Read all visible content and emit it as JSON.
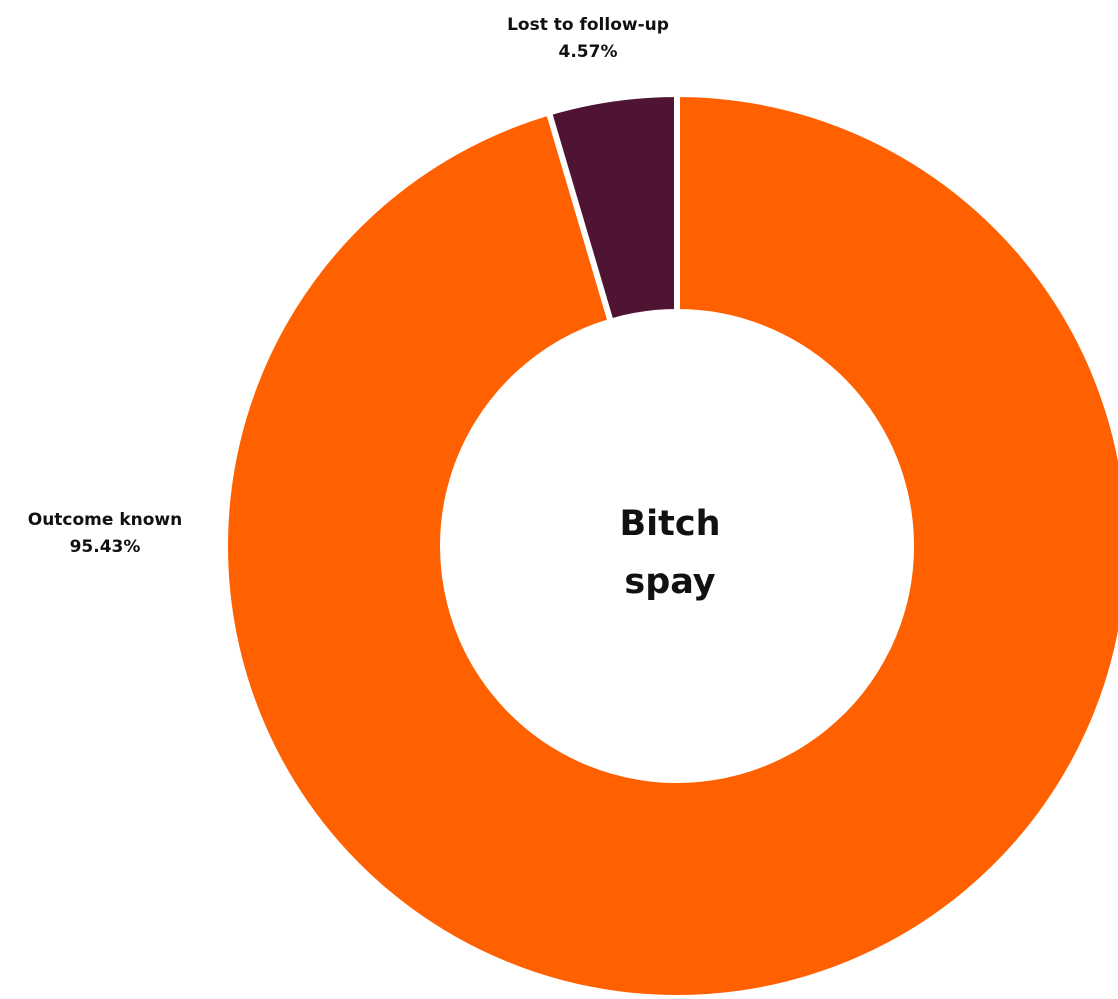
{
  "chart_data": {
    "type": "donut",
    "center_label": [
      "Bitch",
      "spay"
    ],
    "categories": [
      "Outcome known",
      "Lost to follow-up"
    ],
    "values": [
      95.43,
      4.57
    ],
    "value_labels": [
      "95.43%",
      "4.57%"
    ],
    "colors": [
      "#FF6100",
      "#4F1434"
    ]
  }
}
